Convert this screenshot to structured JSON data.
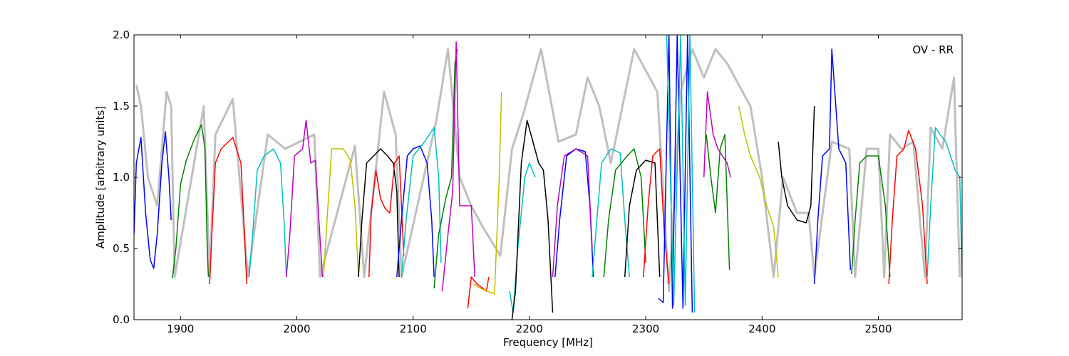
{
  "chart_data": {
    "type": "line",
    "xlabel": "Frequency [MHz]",
    "ylabel": "Amplitude [arbitrary units]",
    "annotation": "OV - RR",
    "xlim": [
      1860,
      2572
    ],
    "ylim": [
      0.0,
      2.0
    ],
    "x_ticks": [
      1900,
      2000,
      2100,
      2200,
      2300,
      2400,
      2500
    ],
    "x_tick_labels": [
      "1900",
      "2000",
      "2100",
      "2200",
      "2300",
      "2400",
      "2500"
    ],
    "y_ticks": [
      0.0,
      0.5,
      1.0,
      1.5,
      2.0
    ],
    "y_tick_labels": [
      "0.0",
      "0.5",
      "1.0",
      "1.5",
      "2.0"
    ],
    "grid": false,
    "colors": {
      "reference": "#bfbfbf",
      "blue": "#0000ff",
      "green": "#008000",
      "red": "#ff0000",
      "cyan": "#00bfbf",
      "magenta": "#bf00bf",
      "yellow": "#bfbf00",
      "black": "#000000"
    },
    "reference_envelope": {
      "color": "reference",
      "x": [
        1862,
        1866,
        1872,
        1880,
        1888,
        1892,
        1895,
        1920,
        1925,
        1930,
        1945,
        1958,
        1975,
        1990,
        2015,
        2020,
        2050,
        2058,
        2075,
        2085,
        2090,
        2120,
        2130,
        2140,
        2150,
        2160,
        2175,
        2185,
        2195,
        2210,
        2225,
        2240,
        2250,
        2260,
        2270,
        2290,
        2310,
        2320,
        2330,
        2340,
        2350,
        2360,
        2370,
        2390,
        2400,
        2410,
        2418,
        2430,
        2440,
        2445,
        2460,
        2475,
        2480,
        2490,
        2500,
        2505,
        2510,
        2520,
        2530,
        2540,
        2545,
        2555,
        2565,
        2570
      ],
      "y": [
        1.65,
        1.5,
        1.0,
        0.8,
        1.6,
        1.5,
        0.3,
        1.5,
        0.3,
        1.3,
        1.55,
        0.3,
        1.3,
        1.2,
        1.3,
        0.3,
        1.22,
        0.3,
        1.6,
        1.3,
        0.3,
        1.4,
        1.9,
        1.0,
        0.8,
        0.65,
        0.45,
        1.2,
        1.45,
        1.9,
        1.25,
        1.3,
        1.7,
        1.5,
        1.1,
        1.9,
        1.6,
        0.2,
        1.6,
        1.9,
        1.7,
        1.9,
        1.8,
        1.5,
        1.0,
        0.3,
        1.0,
        0.75,
        0.75,
        0.3,
        1.25,
        1.2,
        0.3,
        1.2,
        1.2,
        0.3,
        1.3,
        1.2,
        1.25,
        0.3,
        1.35,
        1.2,
        1.7,
        0.3
      ]
    },
    "series": [
      {
        "color": "blue",
        "x": [
          1860,
          1862,
          1866,
          1870,
          1874,
          1877,
          1880,
          1884,
          1887,
          1890,
          1892
        ],
        "y": [
          0.6,
          1.1,
          1.28,
          0.75,
          0.42,
          0.36,
          0.6,
          1.1,
          1.32,
          1.0,
          0.7
        ]
      },
      {
        "color": "green",
        "x": [
          1893,
          1896,
          1900,
          1905,
          1912,
          1918,
          1921,
          1923,
          1924
        ],
        "y": [
          0.29,
          0.5,
          0.95,
          1.12,
          1.27,
          1.37,
          1.2,
          0.5,
          0.3
        ]
      },
      {
        "color": "red",
        "x": [
          1925,
          1927,
          1930,
          1935,
          1945,
          1952,
          1955,
          1957
        ],
        "y": [
          0.25,
          0.6,
          1.1,
          1.2,
          1.28,
          1.1,
          0.6,
          0.25
        ]
      },
      {
        "color": "cyan",
        "x": [
          1959,
          1962,
          1966,
          1972,
          1980,
          1986,
          1989,
          1991
        ],
        "y": [
          0.3,
          0.6,
          1.05,
          1.15,
          1.2,
          1.1,
          0.7,
          0.3
        ]
      },
      {
        "color": "magenta",
        "x": [
          1991,
          1994,
          1998,
          2005,
          2008,
          2012,
          2016,
          2019,
          2022
        ],
        "y": [
          0.3,
          0.6,
          1.15,
          1.2,
          1.4,
          1.1,
          1.12,
          0.7,
          0.3
        ]
      },
      {
        "color": "yellow",
        "x": [
          2023,
          2026,
          2030,
          2040,
          2046,
          2050,
          2053
        ],
        "y": [
          0.3,
          0.7,
          1.2,
          1.2,
          1.12,
          0.8,
          0.3
        ]
      },
      {
        "color": "black",
        "x": [
          2053,
          2056,
          2060,
          2066,
          2072,
          2078,
          2083,
          2086,
          2088
        ],
        "y": [
          0.3,
          0.7,
          1.1,
          1.15,
          1.2,
          1.15,
          1.1,
          0.9,
          0.3
        ]
      },
      {
        "color": "red",
        "x": [
          2062,
          2064,
          2068,
          2072,
          2076,
          2080,
          2084,
          2088,
          2092
        ],
        "y": [
          0.3,
          0.75,
          1.05,
          0.85,
          0.78,
          0.75,
          1.1,
          1.15,
          0.45
        ]
      },
      {
        "color": "blue",
        "x": [
          2086,
          2090,
          2095,
          2100,
          2106,
          2112,
          2116,
          2118
        ],
        "y": [
          0.3,
          0.7,
          1.15,
          1.2,
          1.22,
          1.1,
          0.7,
          0.3
        ]
      },
      {
        "color": "cyan",
        "x": [
          2090,
          2094,
          2100,
          2110,
          2118,
          2122,
          2124
        ],
        "y": [
          0.3,
          0.7,
          1.15,
          1.25,
          1.35,
          1.0,
          0.4
        ]
      },
      {
        "color": "green",
        "x": [
          2118,
          2122,
          2128,
          2133,
          2136,
          2138
        ],
        "y": [
          0.22,
          0.6,
          0.85,
          1.0,
          1.8,
          1.9
        ]
      },
      {
        "color": "magenta",
        "x": [
          2125,
          2130,
          2134,
          2137,
          2140,
          2145,
          2150,
          2153
        ],
        "y": [
          0.2,
          0.6,
          0.9,
          1.95,
          0.8,
          0.8,
          0.8,
          0.3
        ]
      },
      {
        "color": "red",
        "x": [
          2147,
          2150,
          2155,
          2160,
          2163,
          2165
        ],
        "y": [
          0.08,
          0.3,
          0.25,
          0.22,
          0.2,
          0.3
        ]
      },
      {
        "color": "yellow",
        "x": [
          2152,
          2158,
          2164,
          2170,
          2174,
          2176
        ],
        "y": [
          0.25,
          0.22,
          0.2,
          0.18,
          1.0,
          1.6
        ]
      },
      {
        "color": "cyan",
        "x": [
          2183,
          2186,
          2190,
          2196,
          2200,
          2205
        ],
        "y": [
          0.2,
          0.05,
          0.5,
          1.0,
          1.1,
          1.0
        ]
      },
      {
        "color": "black",
        "x": [
          2185,
          2188,
          2193,
          2198,
          2203,
          2208,
          2212,
          2216,
          2220
        ],
        "y": [
          0.0,
          0.2,
          1.1,
          1.4,
          1.25,
          1.1,
          1.05,
          0.7,
          0.05
        ]
      },
      {
        "color": "blue",
        "x": [
          2222,
          2226,
          2232,
          2240,
          2248,
          2252,
          2255
        ],
        "y": [
          0.3,
          0.7,
          1.15,
          1.2,
          1.18,
          0.8,
          0.3
        ]
      },
      {
        "color": "magenta",
        "x": [
          2220,
          2224,
          2230,
          2240,
          2250,
          2254
        ],
        "y": [
          0.3,
          0.8,
          1.15,
          1.2,
          1.15,
          0.5
        ]
      },
      {
        "color": "cyan",
        "x": [
          2254,
          2258,
          2262,
          2270,
          2278,
          2282,
          2286
        ],
        "y": [
          0.3,
          0.7,
          1.1,
          1.2,
          1.17,
          0.7,
          0.3
        ]
      },
      {
        "color": "green",
        "x": [
          2264,
          2268,
          2274,
          2284,
          2290,
          2296,
          2300
        ],
        "y": [
          0.3,
          0.7,
          1.05,
          1.15,
          1.2,
          1.0,
          0.4
        ]
      },
      {
        "color": "black",
        "x": [
          2282,
          2286,
          2292,
          2300,
          2308,
          2312
        ],
        "y": [
          0.3,
          0.8,
          1.05,
          1.12,
          1.1,
          0.3
        ]
      },
      {
        "color": "red",
        "x": [
          2298,
          2302,
          2306,
          2312,
          2316,
          2320
        ],
        "y": [
          0.3,
          0.8,
          1.15,
          1.2,
          0.6,
          0.25
        ]
      },
      {
        "color": "blue",
        "x": [
          2311,
          2315,
          2320,
          2323,
          2327,
          2332,
          2336,
          2340
        ],
        "y": [
          0.15,
          0.12,
          2.0,
          0.08,
          2.0,
          0.08,
          2.0,
          0.05
        ]
      },
      {
        "color": "cyan",
        "x": [
          2318,
          2324,
          2330,
          2334,
          2338,
          2342
        ],
        "y": [
          2.0,
          0.1,
          2.0,
          0.1,
          2.0,
          0.05
        ]
      },
      {
        "color": "magenta",
        "x": [
          2350,
          2353,
          2358,
          2362,
          2366,
          2370,
          2373
        ],
        "y": [
          1.0,
          1.6,
          1.3,
          1.2,
          1.15,
          1.1,
          1.0
        ]
      },
      {
        "color": "green",
        "x": [
          2352,
          2356,
          2360,
          2364,
          2368,
          2372
        ],
        "y": [
          1.3,
          1.0,
          0.75,
          1.2,
          1.3,
          0.35
        ]
      },
      {
        "color": "yellow",
        "x": [
          2380,
          2385,
          2390,
          2398,
          2404,
          2410,
          2414
        ],
        "y": [
          1.5,
          1.3,
          1.15,
          1.0,
          0.8,
          0.65,
          0.3
        ]
      },
      {
        "color": "black",
        "x": [
          2414,
          2417,
          2422,
          2430,
          2438,
          2442,
          2445
        ],
        "y": [
          1.25,
          1.0,
          0.8,
          0.7,
          0.68,
          0.8,
          1.5
        ]
      },
      {
        "color": "blue",
        "x": [
          2445,
          2448,
          2452,
          2458,
          2460,
          2466,
          2472,
          2476
        ],
        "y": [
          0.25,
          0.7,
          1.15,
          1.2,
          1.9,
          1.2,
          1.1,
          0.35
        ]
      },
      {
        "color": "green",
        "x": [
          2477,
          2480,
          2484,
          2490,
          2500,
          2506,
          2510
        ],
        "y": [
          0.32,
          0.7,
          1.1,
          1.15,
          1.15,
          0.8,
          0.3
        ]
      },
      {
        "color": "red",
        "x": [
          2509,
          2512,
          2516,
          2522,
          2526,
          2532,
          2538,
          2542
        ],
        "y": [
          0.25,
          0.7,
          1.15,
          1.2,
          1.33,
          1.2,
          0.8,
          0.25
        ]
      },
      {
        "color": "cyan",
        "x": [
          2542,
          2545,
          2549,
          2553,
          2558,
          2562,
          2566,
          2570,
          2572
        ],
        "y": [
          0.3,
          0.8,
          1.35,
          1.3,
          1.25,
          1.15,
          1.05,
          1.0,
          0.3
        ]
      }
    ]
  }
}
